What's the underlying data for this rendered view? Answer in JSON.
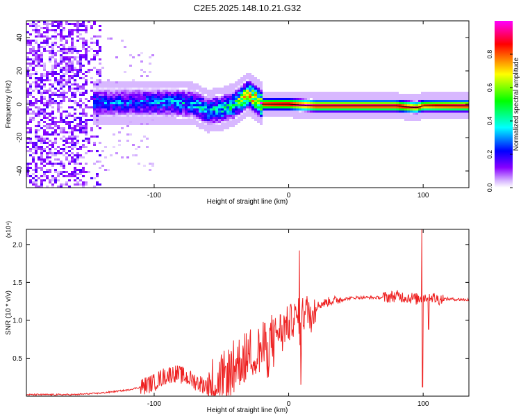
{
  "title": "C2E5.2025.148.10.21.G32",
  "chart_data": [
    {
      "type": "heatmap",
      "title": "C2E5.2025.148.10.21.G32",
      "xlabel": "Height of straight line (km)",
      "ylabel": "Frequency (Hz)",
      "xlim": [
        -195,
        134
      ],
      "ylim": [
        -50,
        50
      ],
      "xticks": [
        -100,
        0,
        100
      ],
      "yticks": [
        -40,
        -20,
        0,
        20,
        40
      ],
      "colorbar": {
        "label": "Normalized spectral amplitude",
        "range": [
          0,
          1
        ],
        "ticks": [
          "0.0",
          "0.2",
          "0.4",
          "0.6",
          "0.8"
        ],
        "tick_values": [
          0.0,
          0.2,
          0.4,
          0.6,
          0.8
        ],
        "colors": [
          "#ffffff",
          "#8800ff",
          "#0000ff",
          "#00ffff",
          "#00ff00",
          "#ffff00",
          "#ff0000",
          "#ff00ff"
        ]
      },
      "ridge": {
        "x": [
          -145,
          -130,
          -115,
          -100,
          -85,
          -70,
          -60,
          -50,
          -40,
          -35,
          -30,
          -25,
          -20,
          -10,
          0,
          20,
          40,
          60,
          80,
          95,
          100,
          110,
          134
        ],
        "freq": [
          1,
          1,
          1,
          1,
          1,
          0,
          -4,
          -3,
          0,
          3,
          6,
          3,
          0,
          0,
          0,
          -1,
          -1,
          -1,
          -1,
          -2,
          -1,
          -1,
          -1
        ],
        "amplitude": [
          0.3,
          0.3,
          0.3,
          0.32,
          0.35,
          0.38,
          0.4,
          0.45,
          0.55,
          0.7,
          0.8,
          0.9,
          0.95,
          0.98,
          1.0,
          1.0,
          1.0,
          1.0,
          1.0,
          0.9,
          0.9,
          0.95,
          1.0
        ]
      },
      "noise_region": [
        -195,
        -100
      ]
    },
    {
      "type": "line",
      "xlabel": "Height of straight line (km)",
      "ylabel": "SNR (10 * v/v)",
      "y_multiplier": "(x10⁴)",
      "xlim": [
        -195,
        134
      ],
      "ylim": [
        0,
        2.2
      ],
      "xticks": [
        -100,
        0,
        100
      ],
      "yticks": [
        0.5,
        1.0,
        1.5,
        2.0
      ],
      "yticklabels": [
        "0.5",
        "1.0",
        "1.5",
        "2.0"
      ],
      "series": [
        {
          "name": "SNR",
          "color": "#ee2222",
          "x": [
            -195,
            -160,
            -140,
            -120,
            -110,
            -100,
            -95,
            -90,
            -85,
            -80,
            -75,
            -70,
            -65,
            -60,
            -55,
            -50,
            -45,
            -40,
            -35,
            -30,
            -25,
            -20,
            -15,
            -10,
            -5,
            0,
            5,
            10,
            15,
            20,
            25,
            30,
            40,
            50,
            60,
            70,
            75,
            80,
            90,
            95,
            100,
            105,
            110,
            115,
            120,
            134
          ],
          "y": [
            0.02,
            0.02,
            0.04,
            0.08,
            0.12,
            0.18,
            0.24,
            0.28,
            0.3,
            0.28,
            0.24,
            0.2,
            0.16,
            0.14,
            0.2,
            0.22,
            0.3,
            0.42,
            0.48,
            0.55,
            0.58,
            0.62,
            0.7,
            0.82,
            0.9,
            0.95,
            1.02,
            1.08,
            1.12,
            1.18,
            1.22,
            1.25,
            1.28,
            1.3,
            1.3,
            1.3,
            1.31,
            1.32,
            1.3,
            1.28,
            1.3,
            1.32,
            1.28,
            1.28,
            1.28,
            1.27
          ]
        }
      ],
      "spikes": [
        {
          "x": 8,
          "y": 1.92
        },
        {
          "x": 9,
          "y": 0.15
        },
        {
          "x": 99,
          "y": 2.2
        },
        {
          "x": 99.5,
          "y": 0.12
        },
        {
          "x": 104,
          "y": 0.88
        }
      ]
    }
  ]
}
